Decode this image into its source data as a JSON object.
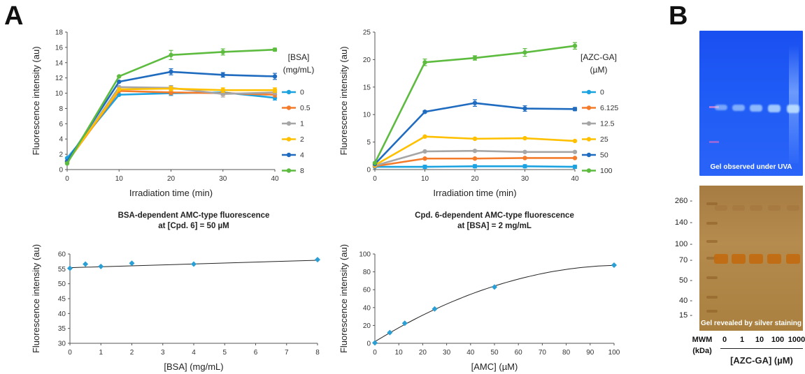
{
  "panels": {
    "a": "A",
    "b": "B"
  },
  "chart_data": [
    {
      "type": "line",
      "id": "bsa-time",
      "title": "",
      "xlabel": "Irradiation time (min)",
      "ylabel": "Fluorescence intensity (au)",
      "x": [
        0,
        10,
        20,
        30,
        40
      ],
      "xlim": [
        0,
        40
      ],
      "ylim": [
        0,
        18
      ],
      "xticks": [
        0,
        10,
        20,
        30,
        40
      ],
      "yticks": [
        0,
        2,
        4,
        6,
        8,
        10,
        12,
        14,
        16,
        18
      ],
      "legend_title": [
        "[BSA]",
        "(mg/mL)"
      ],
      "legend_position": "right",
      "series": [
        {
          "name": "0",
          "color": "#1aa3e0",
          "values": [
            1.5,
            9.8,
            10.0,
            10.1,
            9.4
          ],
          "errors": [
            0,
            0,
            0.3,
            0.3,
            0.3
          ]
        },
        {
          "name": "0.5",
          "color": "#f47b2a",
          "values": [
            1.0,
            10.3,
            10.1,
            10.0,
            9.8
          ],
          "errors": [
            0,
            0,
            0.3,
            0.3,
            0.3
          ]
        },
        {
          "name": "1",
          "color": "#a6a6a6",
          "values": [
            0.9,
            10.8,
            10.7,
            9.9,
            10.1
          ],
          "errors": [
            0,
            0,
            0.3,
            0.4,
            0.3
          ]
        },
        {
          "name": "2",
          "color": "#ffc000",
          "values": [
            1.0,
            10.5,
            10.6,
            10.4,
            10.4
          ],
          "errors": [
            0,
            0,
            0.3,
            0.3,
            0.3
          ]
        },
        {
          "name": "4",
          "color": "#1f6bbf",
          "values": [
            1.1,
            11.5,
            12.8,
            12.4,
            12.2
          ],
          "errors": [
            0,
            0,
            0.4,
            0.3,
            0.4
          ]
        },
        {
          "name": "8",
          "color": "#5dbb3f",
          "values": [
            0.8,
            12.2,
            15.0,
            15.4,
            15.7
          ],
          "errors": [
            0,
            0,
            0.6,
            0.4,
            0.2
          ]
        }
      ]
    },
    {
      "type": "line",
      "id": "azc-time",
      "title": "",
      "xlabel": "Irradiation time (min)",
      "ylabel": "Fluorescence intensity (au)",
      "x": [
        0,
        10,
        20,
        30,
        40
      ],
      "xlim": [
        0,
        40
      ],
      "ylim": [
        0,
        25
      ],
      "xticks": [
        0,
        10,
        20,
        30,
        40
      ],
      "yticks": [
        0,
        5,
        10,
        15,
        20,
        25
      ],
      "legend_title": [
        "[AZC-GA]",
        "(µM)"
      ],
      "legend_position": "right",
      "series": [
        {
          "name": "0",
          "color": "#1aa3e0",
          "values": [
            0.5,
            0.5,
            0.6,
            0.6,
            0.5
          ],
          "errors": [
            0,
            0.3,
            0.3,
            0.3,
            0.3
          ]
        },
        {
          "name": "6.125",
          "color": "#f47b2a",
          "values": [
            0.6,
            2.0,
            2.0,
            2.1,
            2.1
          ],
          "errors": [
            0,
            0.1,
            0.1,
            0.1,
            0.1
          ]
        },
        {
          "name": "12.5",
          "color": "#a6a6a6",
          "values": [
            0.7,
            3.3,
            3.4,
            3.2,
            3.2
          ],
          "errors": [
            0,
            0.1,
            0.1,
            0.1,
            0.1
          ]
        },
        {
          "name": "25",
          "color": "#ffc000",
          "values": [
            0.8,
            6.0,
            5.6,
            5.7,
            5.2
          ],
          "errors": [
            0,
            0.1,
            0.1,
            0.1,
            0.1
          ]
        },
        {
          "name": "50",
          "color": "#1f6bbf",
          "values": [
            1.0,
            10.5,
            12.1,
            11.1,
            11.0
          ],
          "errors": [
            0,
            0.2,
            0.6,
            0.5,
            0.3
          ]
        },
        {
          "name": "100",
          "color": "#5dbb3f",
          "values": [
            1.2,
            19.5,
            20.3,
            21.3,
            22.5
          ],
          "errors": [
            0,
            0.6,
            0.4,
            0.7,
            0.6
          ]
        }
      ]
    },
    {
      "type": "scatter",
      "id": "bsa-dependent",
      "title": [
        "BSA-dependent AMC-type fluorescence",
        "at [Cpd. 6] = 50 µM"
      ],
      "xlabel": "[BSA] (mg/mL)",
      "ylabel": "Fluorescence intensity (au)",
      "x": [
        0,
        0.5,
        1,
        2,
        4,
        8
      ],
      "xlim": [
        0,
        8
      ],
      "ylim": [
        30,
        60
      ],
      "xticks": [
        0,
        1,
        2,
        3,
        4,
        5,
        6,
        7,
        8
      ],
      "yticks": [
        30,
        35,
        40,
        45,
        50,
        55,
        60
      ],
      "color": "#2a9fd6",
      "series": [
        {
          "values": [
            55.2,
            56.6,
            55.8,
            56.9,
            56.6,
            58.1
          ]
        }
      ],
      "trendline": {
        "type": "linear",
        "from": [
          0,
          55.4
        ],
        "to": [
          8,
          57.9
        ]
      }
    },
    {
      "type": "scatter",
      "id": "cpd6-dependent",
      "title": [
        "Cpd. 6-dependent AMC-type fluorescence",
        "at [BSA] = 2 mg/mL"
      ],
      "xlabel": "[AMC] (µM)",
      "ylabel": "Fluorescence intensity (au)",
      "x": [
        0,
        6.25,
        12.5,
        25,
        50,
        100
      ],
      "xlim": [
        0,
        100
      ],
      "ylim": [
        0,
        100
      ],
      "xticks": [
        0,
        10,
        20,
        30,
        40,
        50,
        60,
        70,
        80,
        90,
        100
      ],
      "yticks": [
        0,
        20,
        40,
        60,
        80,
        100
      ],
      "color": "#2a9fd6",
      "series": [
        {
          "values": [
            0.5,
            12.0,
            22.5,
            38.5,
            63.0,
            87.5
          ]
        }
      ],
      "trendline": {
        "type": "polynomial"
      }
    }
  ],
  "gel": {
    "uv_caption": "Gel observed under UVA",
    "silver_caption": "Gel revealed by silver staining",
    "mw_markers": [
      "260 -",
      "140 -",
      "100 -",
      "70 -",
      "50 -",
      "40 -",
      "15 -"
    ],
    "lanes": [
      "MWM",
      "0",
      "1",
      "10",
      "100",
      "1000"
    ],
    "kda": "(kDa)",
    "xlabel": "[AZC-GA] (µM)",
    "uv_band_intensity": [
      0.35,
      0.45,
      0.6,
      0.8,
      1.0
    ],
    "colors": {
      "uv_band": "#b9ddff",
      "silver_band": "#c26a10"
    }
  }
}
